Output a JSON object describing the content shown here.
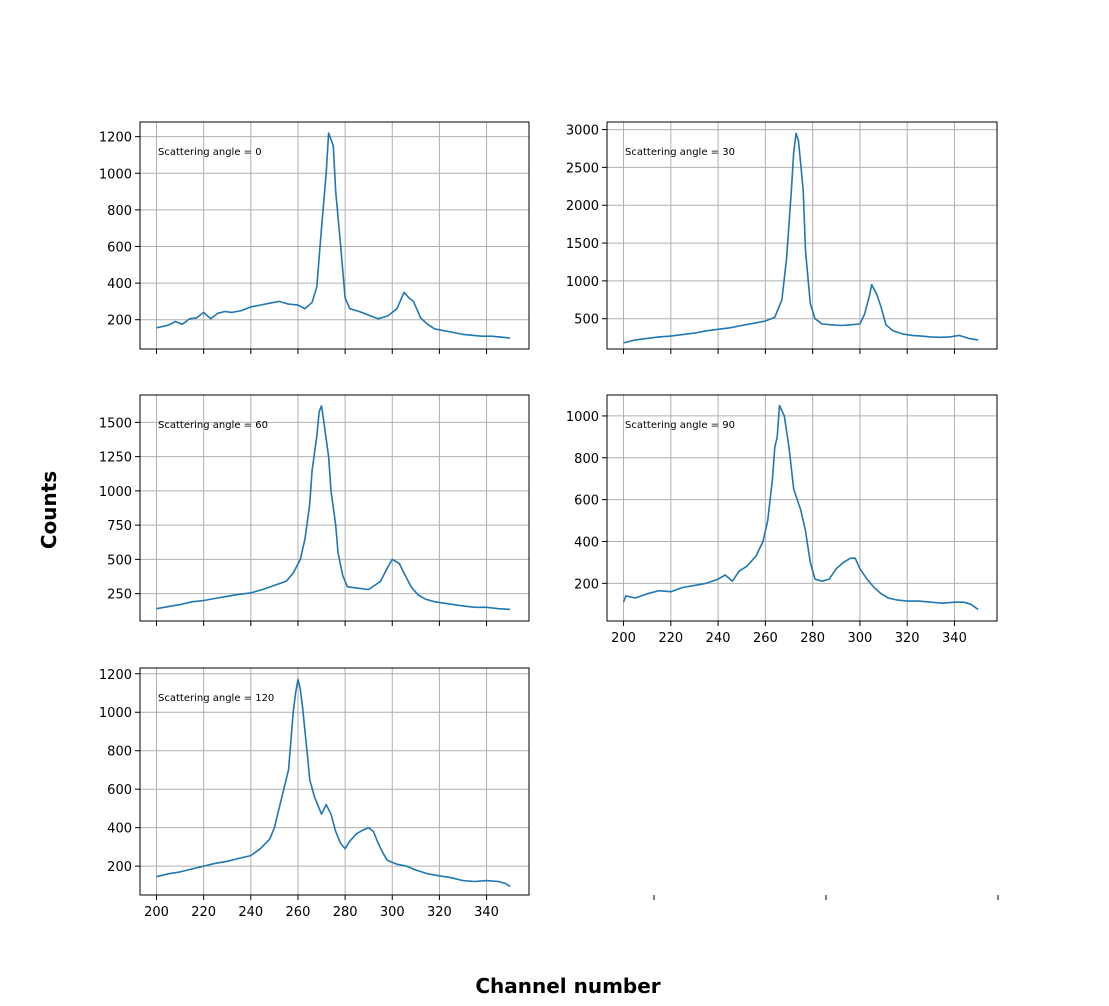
{
  "figure": {
    "xlabel": "Channel number",
    "ylabel": "Counts"
  },
  "colors": {
    "line": "#1f77b4",
    "grid": "#b0b0b0"
  },
  "chart_data": [
    {
      "type": "line",
      "annotation": "Scattering angle = 0",
      "xlim": [
        193,
        358
      ],
      "ylim": [
        40,
        1280
      ],
      "xticks": [
        200,
        220,
        240,
        260,
        280,
        300,
        320,
        340
      ],
      "yticks": [
        200,
        400,
        600,
        800,
        1000,
        1200
      ],
      "show_xticklabels": false,
      "grid": true,
      "points": [
        [
          200,
          155
        ],
        [
          205,
          170
        ],
        [
          208,
          190
        ],
        [
          211,
          175
        ],
        [
          214,
          205
        ],
        [
          217,
          210
        ],
        [
          220,
          240
        ],
        [
          223,
          205
        ],
        [
          226,
          235
        ],
        [
          229,
          245
        ],
        [
          232,
          240
        ],
        [
          236,
          250
        ],
        [
          240,
          270
        ],
        [
          244,
          280
        ],
        [
          248,
          290
        ],
        [
          252,
          300
        ],
        [
          256,
          285
        ],
        [
          260,
          280
        ],
        [
          263,
          260
        ],
        [
          266,
          295
        ],
        [
          268,
          380
        ],
        [
          270,
          700
        ],
        [
          272,
          1000
        ],
        [
          273,
          1220
        ],
        [
          275,
          1150
        ],
        [
          276,
          900
        ],
        [
          278,
          620
        ],
        [
          280,
          320
        ],
        [
          282,
          260
        ],
        [
          286,
          245
        ],
        [
          290,
          225
        ],
        [
          294,
          205
        ],
        [
          298,
          220
        ],
        [
          302,
          260
        ],
        [
          305,
          350
        ],
        [
          307,
          320
        ],
        [
          309,
          300
        ],
        [
          312,
          210
        ],
        [
          315,
          175
        ],
        [
          318,
          150
        ],
        [
          322,
          140
        ],
        [
          326,
          130
        ],
        [
          330,
          120
        ],
        [
          334,
          115
        ],
        [
          338,
          110
        ],
        [
          342,
          110
        ],
        [
          346,
          105
        ],
        [
          350,
          100
        ]
      ]
    },
    {
      "type": "line",
      "annotation": "Scattering angle = 30",
      "xlim": [
        193,
        358
      ],
      "ylim": [
        100,
        3100
      ],
      "xticks": [
        200,
        220,
        240,
        260,
        280,
        300,
        320,
        340
      ],
      "yticks": [
        500,
        1000,
        1500,
        2000,
        2500,
        3000
      ],
      "show_xticklabels": false,
      "grid": true,
      "points": [
        [
          200,
          180
        ],
        [
          205,
          220
        ],
        [
          210,
          240
        ],
        [
          215,
          260
        ],
        [
          220,
          270
        ],
        [
          225,
          290
        ],
        [
          230,
          310
        ],
        [
          235,
          340
        ],
        [
          240,
          360
        ],
        [
          245,
          380
        ],
        [
          250,
          410
        ],
        [
          255,
          440
        ],
        [
          260,
          470
        ],
        [
          264,
          520
        ],
        [
          267,
          750
        ],
        [
          269,
          1300
        ],
        [
          271,
          2200
        ],
        [
          272,
          2700
        ],
        [
          273,
          2950
        ],
        [
          274,
          2850
        ],
        [
          276,
          2200
        ],
        [
          277,
          1400
        ],
        [
          279,
          700
        ],
        [
          281,
          500
        ],
        [
          284,
          430
        ],
        [
          288,
          420
        ],
        [
          292,
          410
        ],
        [
          296,
          420
        ],
        [
          300,
          430
        ],
        [
          302,
          560
        ],
        [
          304,
          800
        ],
        [
          305,
          950
        ],
        [
          307,
          830
        ],
        [
          309,
          650
        ],
        [
          311,
          420
        ],
        [
          314,
          340
        ],
        [
          318,
          300
        ],
        [
          322,
          280
        ],
        [
          326,
          270
        ],
        [
          330,
          260
        ],
        [
          334,
          255
        ],
        [
          338,
          260
        ],
        [
          342,
          280
        ],
        [
          346,
          240
        ],
        [
          350,
          220
        ]
      ]
    },
    {
      "type": "line",
      "annotation": "Scattering angle = 60",
      "xlim": [
        193,
        358
      ],
      "ylim": [
        50,
        1700
      ],
      "xticks": [
        200,
        220,
        240,
        260,
        280,
        300,
        320,
        340
      ],
      "yticks": [
        250,
        500,
        750,
        1000,
        1250,
        1500
      ],
      "show_xticklabels": false,
      "grid": true,
      "points": [
        [
          200,
          140
        ],
        [
          205,
          155
        ],
        [
          210,
          170
        ],
        [
          215,
          190
        ],
        [
          220,
          200
        ],
        [
          225,
          215
        ],
        [
          230,
          230
        ],
        [
          235,
          245
        ],
        [
          240,
          255
        ],
        [
          245,
          280
        ],
        [
          250,
          310
        ],
        [
          255,
          340
        ],
        [
          258,
          400
        ],
        [
          261,
          500
        ],
        [
          263,
          650
        ],
        [
          265,
          900
        ],
        [
          266,
          1150
        ],
        [
          268,
          1400
        ],
        [
          269,
          1580
        ],
        [
          270,
          1620
        ],
        [
          271,
          1500
        ],
        [
          273,
          1250
        ],
        [
          274,
          1000
        ],
        [
          276,
          750
        ],
        [
          277,
          550
        ],
        [
          279,
          380
        ],
        [
          281,
          300
        ],
        [
          285,
          290
        ],
        [
          290,
          280
        ],
        [
          295,
          340
        ],
        [
          298,
          440
        ],
        [
          300,
          500
        ],
        [
          303,
          470
        ],
        [
          305,
          400
        ],
        [
          308,
          300
        ],
        [
          311,
          240
        ],
        [
          314,
          210
        ],
        [
          318,
          190
        ],
        [
          322,
          180
        ],
        [
          326,
          170
        ],
        [
          330,
          160
        ],
        [
          335,
          150
        ],
        [
          340,
          150
        ],
        [
          345,
          140
        ],
        [
          350,
          135
        ]
      ]
    },
    {
      "type": "line",
      "annotation": "Scattering angle = 90",
      "xlim": [
        193,
        358
      ],
      "ylim": [
        20,
        1100
      ],
      "xticks": [
        200,
        220,
        240,
        260,
        280,
        300,
        320,
        340
      ],
      "yticks": [
        200,
        400,
        600,
        800,
        1000
      ],
      "show_xticklabels": true,
      "grid": true,
      "points": [
        [
          200,
          110
        ],
        [
          201,
          140
        ],
        [
          205,
          130
        ],
        [
          210,
          150
        ],
        [
          215,
          165
        ],
        [
          220,
          160
        ],
        [
          225,
          180
        ],
        [
          230,
          190
        ],
        [
          235,
          200
        ],
        [
          240,
          220
        ],
        [
          243,
          240
        ],
        [
          246,
          210
        ],
        [
          249,
          260
        ],
        [
          252,
          280
        ],
        [
          256,
          330
        ],
        [
          259,
          400
        ],
        [
          261,
          500
        ],
        [
          263,
          700
        ],
        [
          264,
          850
        ],
        [
          265,
          900
        ],
        [
          266,
          1050
        ],
        [
          268,
          1000
        ],
        [
          270,
          850
        ],
        [
          272,
          650
        ],
        [
          275,
          550
        ],
        [
          277,
          450
        ],
        [
          279,
          300
        ],
        [
          281,
          220
        ],
        [
          284,
          210
        ],
        [
          287,
          220
        ],
        [
          290,
          270
        ],
        [
          293,
          300
        ],
        [
          296,
          320
        ],
        [
          298,
          320
        ],
        [
          300,
          270
        ],
        [
          303,
          220
        ],
        [
          306,
          180
        ],
        [
          309,
          150
        ],
        [
          312,
          130
        ],
        [
          316,
          120
        ],
        [
          320,
          115
        ],
        [
          325,
          115
        ],
        [
          330,
          110
        ],
        [
          335,
          105
        ],
        [
          340,
          110
        ],
        [
          344,
          110
        ],
        [
          347,
          100
        ],
        [
          350,
          75
        ]
      ]
    },
    {
      "type": "line",
      "annotation": "Scattering angle = 120",
      "xlim": [
        193,
        358
      ],
      "ylim": [
        50,
        1230
      ],
      "xticks": [
        200,
        220,
        240,
        260,
        280,
        300,
        320,
        340
      ],
      "yticks": [
        200,
        400,
        600,
        800,
        1000,
        1200
      ],
      "show_xticklabels": true,
      "grid": true,
      "points": [
        [
          200,
          145
        ],
        [
          205,
          160
        ],
        [
          210,
          170
        ],
        [
          215,
          185
        ],
        [
          220,
          200
        ],
        [
          225,
          215
        ],
        [
          230,
          225
        ],
        [
          235,
          240
        ],
        [
          240,
          255
        ],
        [
          244,
          290
        ],
        [
          248,
          340
        ],
        [
          250,
          400
        ],
        [
          252,
          500
        ],
        [
          254,
          600
        ],
        [
          256,
          700
        ],
        [
          257,
          850
        ],
        [
          258,
          1000
        ],
        [
          259,
          1100
        ],
        [
          260,
          1170
        ],
        [
          261,
          1120
        ],
        [
          262,
          1020
        ],
        [
          263,
          900
        ],
        [
          264,
          780
        ],
        [
          265,
          650
        ],
        [
          267,
          560
        ],
        [
          270,
          470
        ],
        [
          272,
          520
        ],
        [
          274,
          470
        ],
        [
          276,
          380
        ],
        [
          278,
          320
        ],
        [
          280,
          290
        ],
        [
          282,
          330
        ],
        [
          285,
          370
        ],
        [
          288,
          390
        ],
        [
          290,
          400
        ],
        [
          292,
          380
        ],
        [
          294,
          320
        ],
        [
          296,
          270
        ],
        [
          298,
          230
        ],
        [
          302,
          210
        ],
        [
          306,
          200
        ],
        [
          310,
          180
        ],
        [
          315,
          160
        ],
        [
          320,
          150
        ],
        [
          325,
          140
        ],
        [
          330,
          125
        ],
        [
          335,
          120
        ],
        [
          340,
          125
        ],
        [
          345,
          120
        ],
        [
          348,
          110
        ],
        [
          350,
          95
        ]
      ]
    }
  ]
}
